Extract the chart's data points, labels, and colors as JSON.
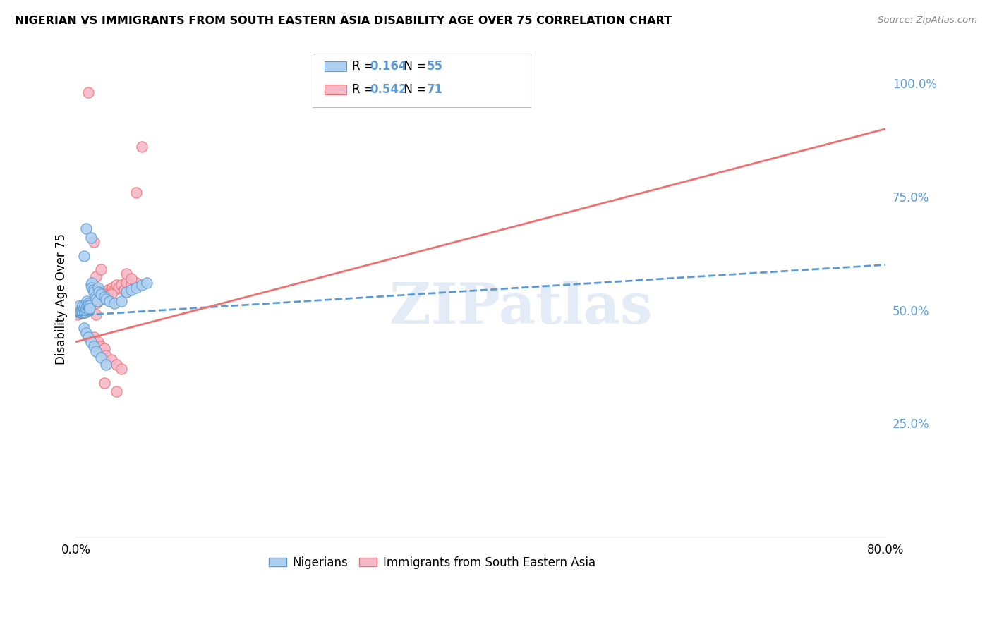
{
  "title": "NIGERIAN VS IMMIGRANTS FROM SOUTH EASTERN ASIA DISABILITY AGE OVER 75 CORRELATION CHART",
  "source": "Source: ZipAtlas.com",
  "ylabel": "Disability Age Over 75",
  "right_yticks": [
    "100.0%",
    "75.0%",
    "50.0%",
    "25.0%"
  ],
  "right_ytick_vals": [
    1.0,
    0.75,
    0.5,
    0.25
  ],
  "legend_blue_R": "0.164",
  "legend_blue_N": "55",
  "legend_pink_R": "0.542",
  "legend_pink_N": "71",
  "legend_label_blue": "Nigerians",
  "legend_label_pink": "Immigrants from South Eastern Asia",
  "watermark": "ZIPatlas",
  "blue_scatter": [
    [
      0.002,
      0.5
    ],
    [
      0.003,
      0.505
    ],
    [
      0.004,
      0.495
    ],
    [
      0.004,
      0.51
    ],
    [
      0.005,
      0.5
    ],
    [
      0.005,
      0.495
    ],
    [
      0.006,
      0.505
    ],
    [
      0.006,
      0.5
    ],
    [
      0.007,
      0.51
    ],
    [
      0.007,
      0.495
    ],
    [
      0.008,
      0.5
    ],
    [
      0.008,
      0.505
    ],
    [
      0.009,
      0.51
    ],
    [
      0.009,
      0.495
    ],
    [
      0.01,
      0.5
    ],
    [
      0.01,
      0.505
    ],
    [
      0.011,
      0.51
    ],
    [
      0.011,
      0.52
    ],
    [
      0.012,
      0.515
    ],
    [
      0.012,
      0.51
    ],
    [
      0.013,
      0.505
    ],
    [
      0.013,
      0.5
    ],
    [
      0.014,
      0.51
    ],
    [
      0.014,
      0.505
    ],
    [
      0.015,
      0.555
    ],
    [
      0.016,
      0.56
    ],
    [
      0.016,
      0.55
    ],
    [
      0.017,
      0.545
    ],
    [
      0.018,
      0.54
    ],
    [
      0.019,
      0.53
    ],
    [
      0.02,
      0.525
    ],
    [
      0.021,
      0.52
    ],
    [
      0.022,
      0.55
    ],
    [
      0.023,
      0.54
    ],
    [
      0.025,
      0.535
    ],
    [
      0.028,
      0.53
    ],
    [
      0.03,
      0.525
    ],
    [
      0.033,
      0.52
    ],
    [
      0.038,
      0.515
    ],
    [
      0.045,
      0.52
    ],
    [
      0.05,
      0.54
    ],
    [
      0.055,
      0.545
    ],
    [
      0.06,
      0.55
    ],
    [
      0.065,
      0.555
    ],
    [
      0.07,
      0.56
    ],
    [
      0.008,
      0.46
    ],
    [
      0.01,
      0.45
    ],
    [
      0.012,
      0.44
    ],
    [
      0.015,
      0.43
    ],
    [
      0.018,
      0.42
    ],
    [
      0.02,
      0.41
    ],
    [
      0.025,
      0.395
    ],
    [
      0.03,
      0.38
    ],
    [
      0.008,
      0.62
    ],
    [
      0.01,
      0.68
    ],
    [
      0.015,
      0.66
    ]
  ],
  "pink_scatter": [
    [
      0.002,
      0.49
    ],
    [
      0.003,
      0.495
    ],
    [
      0.004,
      0.5
    ],
    [
      0.005,
      0.495
    ],
    [
      0.005,
      0.505
    ],
    [
      0.006,
      0.5
    ],
    [
      0.006,
      0.495
    ],
    [
      0.007,
      0.5
    ],
    [
      0.007,
      0.505
    ],
    [
      0.008,
      0.495
    ],
    [
      0.008,
      0.5
    ],
    [
      0.009,
      0.505
    ],
    [
      0.009,
      0.495
    ],
    [
      0.01,
      0.5
    ],
    [
      0.01,
      0.505
    ],
    [
      0.011,
      0.51
    ],
    [
      0.012,
      0.505
    ],
    [
      0.012,
      0.51
    ],
    [
      0.013,
      0.505
    ],
    [
      0.013,
      0.515
    ],
    [
      0.014,
      0.51
    ],
    [
      0.015,
      0.51
    ],
    [
      0.015,
      0.515
    ],
    [
      0.016,
      0.52
    ],
    [
      0.017,
      0.515
    ],
    [
      0.018,
      0.52
    ],
    [
      0.018,
      0.525
    ],
    [
      0.02,
      0.52
    ],
    [
      0.02,
      0.515
    ],
    [
      0.022,
      0.525
    ],
    [
      0.022,
      0.52
    ],
    [
      0.023,
      0.525
    ],
    [
      0.025,
      0.53
    ],
    [
      0.025,
      0.535
    ],
    [
      0.027,
      0.53
    ],
    [
      0.028,
      0.535
    ],
    [
      0.03,
      0.54
    ],
    [
      0.03,
      0.535
    ],
    [
      0.032,
      0.545
    ],
    [
      0.033,
      0.54
    ],
    [
      0.035,
      0.545
    ],
    [
      0.036,
      0.55
    ],
    [
      0.038,
      0.545
    ],
    [
      0.04,
      0.555
    ],
    [
      0.042,
      0.55
    ],
    [
      0.045,
      0.555
    ],
    [
      0.048,
      0.545
    ],
    [
      0.05,
      0.54
    ],
    [
      0.05,
      0.56
    ],
    [
      0.055,
      0.555
    ],
    [
      0.06,
      0.56
    ],
    [
      0.018,
      0.44
    ],
    [
      0.022,
      0.43
    ],
    [
      0.025,
      0.42
    ],
    [
      0.028,
      0.415
    ],
    [
      0.03,
      0.4
    ],
    [
      0.035,
      0.39
    ],
    [
      0.04,
      0.38
    ],
    [
      0.045,
      0.37
    ],
    [
      0.02,
      0.575
    ],
    [
      0.025,
      0.59
    ],
    [
      0.018,
      0.65
    ],
    [
      0.065,
      0.86
    ],
    [
      0.06,
      0.76
    ],
    [
      0.04,
      0.32
    ],
    [
      0.028,
      0.34
    ],
    [
      0.012,
      0.98
    ],
    [
      0.05,
      0.58
    ],
    [
      0.055,
      0.57
    ],
    [
      0.02,
      0.49
    ],
    [
      0.035,
      0.535
    ]
  ],
  "blue_line_color": "#5b9bd5",
  "pink_line_color": "#f07070",
  "blue_scatter_facecolor": "#aed0f0",
  "pink_scatter_facecolor": "#f5b8c8",
  "background_color": "#ffffff",
  "grid_color": "#e0e0e0",
  "xlim": [
    0.0,
    0.8
  ],
  "ylim": [
    0.0,
    1.05
  ],
  "blue_trend": [
    0.0,
    0.8,
    0.488,
    0.6
  ],
  "pink_trend": [
    0.0,
    0.8,
    0.43,
    0.9
  ]
}
